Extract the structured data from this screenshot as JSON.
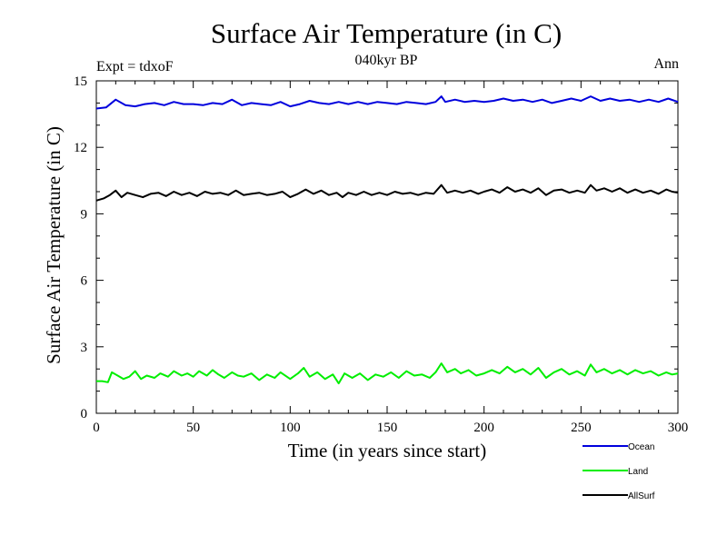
{
  "chart_data": {
    "type": "line",
    "title": "Surface Air Temperature (in C)",
    "subtitle": "040kyr BP",
    "left_note": "Expt = tdxoF",
    "right_note": "Ann",
    "xlabel": "Time (in years since start)",
    "ylabel": "Surface Air Temperature (in C)",
    "xlim": [
      0,
      300
    ],
    "ylim": [
      0,
      15
    ],
    "xticks": [
      0,
      50,
      100,
      150,
      200,
      250,
      300
    ],
    "yticks": [
      0,
      3,
      6,
      9,
      12,
      15
    ],
    "legend_position": "below-right",
    "grid": false,
    "series": [
      {
        "name": "Ocean",
        "color": "#0000dd",
        "points": [
          [
            0,
            13.75
          ],
          [
            5,
            13.8
          ],
          [
            10,
            14.15
          ],
          [
            15,
            13.9
          ],
          [
            20,
            13.85
          ],
          [
            25,
            13.95
          ],
          [
            30,
            14.0
          ],
          [
            35,
            13.9
          ],
          [
            40,
            14.05
          ],
          [
            45,
            13.95
          ],
          [
            50,
            13.95
          ],
          [
            55,
            13.9
          ],
          [
            60,
            14.0
          ],
          [
            65,
            13.95
          ],
          [
            70,
            14.15
          ],
          [
            75,
            13.9
          ],
          [
            80,
            14.0
          ],
          [
            85,
            13.95
          ],
          [
            90,
            13.9
          ],
          [
            95,
            14.05
          ],
          [
            100,
            13.85
          ],
          [
            105,
            13.95
          ],
          [
            110,
            14.1
          ],
          [
            115,
            14.0
          ],
          [
            120,
            13.95
          ],
          [
            125,
            14.05
          ],
          [
            130,
            13.95
          ],
          [
            135,
            14.05
          ],
          [
            140,
            13.95
          ],
          [
            145,
            14.05
          ],
          [
            150,
            14.0
          ],
          [
            155,
            13.95
          ],
          [
            160,
            14.05
          ],
          [
            165,
            14.0
          ],
          [
            170,
            13.95
          ],
          [
            175,
            14.05
          ],
          [
            178,
            14.3
          ],
          [
            180,
            14.05
          ],
          [
            185,
            14.15
          ],
          [
            190,
            14.05
          ],
          [
            195,
            14.1
          ],
          [
            200,
            14.05
          ],
          [
            205,
            14.1
          ],
          [
            210,
            14.2
          ],
          [
            215,
            14.1
          ],
          [
            220,
            14.15
          ],
          [
            225,
            14.05
          ],
          [
            230,
            14.15
          ],
          [
            235,
            14.0
          ],
          [
            240,
            14.1
          ],
          [
            245,
            14.2
          ],
          [
            250,
            14.1
          ],
          [
            255,
            14.3
          ],
          [
            260,
            14.1
          ],
          [
            265,
            14.2
          ],
          [
            270,
            14.1
          ],
          [
            275,
            14.15
          ],
          [
            280,
            14.05
          ],
          [
            285,
            14.15
          ],
          [
            290,
            14.05
          ],
          [
            295,
            14.2
          ],
          [
            300,
            14.05
          ]
        ]
      },
      {
        "name": "Land",
        "color": "#00ee00",
        "points": [
          [
            0,
            1.45
          ],
          [
            3,
            1.45
          ],
          [
            6,
            1.4
          ],
          [
            8,
            1.85
          ],
          [
            11,
            1.7
          ],
          [
            14,
            1.55
          ],
          [
            17,
            1.65
          ],
          [
            20,
            1.9
          ],
          [
            23,
            1.55
          ],
          [
            26,
            1.7
          ],
          [
            30,
            1.6
          ],
          [
            33,
            1.8
          ],
          [
            37,
            1.65
          ],
          [
            40,
            1.9
          ],
          [
            44,
            1.7
          ],
          [
            47,
            1.8
          ],
          [
            50,
            1.65
          ],
          [
            53,
            1.9
          ],
          [
            57,
            1.7
          ],
          [
            60,
            1.95
          ],
          [
            63,
            1.75
          ],
          [
            66,
            1.6
          ],
          [
            70,
            1.85
          ],
          [
            73,
            1.7
          ],
          [
            76,
            1.65
          ],
          [
            80,
            1.8
          ],
          [
            84,
            1.5
          ],
          [
            88,
            1.75
          ],
          [
            92,
            1.6
          ],
          [
            95,
            1.85
          ],
          [
            100,
            1.55
          ],
          [
            104,
            1.8
          ],
          [
            107,
            2.05
          ],
          [
            110,
            1.65
          ],
          [
            114,
            1.85
          ],
          [
            118,
            1.55
          ],
          [
            122,
            1.75
          ],
          [
            125,
            1.35
          ],
          [
            128,
            1.8
          ],
          [
            132,
            1.6
          ],
          [
            136,
            1.8
          ],
          [
            140,
            1.5
          ],
          [
            144,
            1.75
          ],
          [
            148,
            1.65
          ],
          [
            152,
            1.85
          ],
          [
            156,
            1.6
          ],
          [
            160,
            1.9
          ],
          [
            164,
            1.7
          ],
          [
            168,
            1.75
          ],
          [
            172,
            1.6
          ],
          [
            175,
            1.85
          ],
          [
            178,
            2.25
          ],
          [
            181,
            1.85
          ],
          [
            185,
            2.0
          ],
          [
            188,
            1.8
          ],
          [
            192,
            1.95
          ],
          [
            196,
            1.7
          ],
          [
            200,
            1.8
          ],
          [
            204,
            1.95
          ],
          [
            208,
            1.8
          ],
          [
            212,
            2.1
          ],
          [
            216,
            1.85
          ],
          [
            220,
            2.0
          ],
          [
            224,
            1.75
          ],
          [
            228,
            2.05
          ],
          [
            232,
            1.6
          ],
          [
            236,
            1.85
          ],
          [
            240,
            2.0
          ],
          [
            244,
            1.75
          ],
          [
            248,
            1.9
          ],
          [
            252,
            1.7
          ],
          [
            255,
            2.2
          ],
          [
            258,
            1.85
          ],
          [
            262,
            2.0
          ],
          [
            266,
            1.8
          ],
          [
            270,
            1.95
          ],
          [
            274,
            1.75
          ],
          [
            278,
            1.95
          ],
          [
            282,
            1.8
          ],
          [
            286,
            1.9
          ],
          [
            290,
            1.7
          ],
          [
            294,
            1.85
          ],
          [
            297,
            1.75
          ],
          [
            300,
            1.8
          ]
        ]
      },
      {
        "name": "AllSurf",
        "color": "#000000",
        "points": [
          [
            0,
            9.6
          ],
          [
            4,
            9.7
          ],
          [
            7,
            9.85
          ],
          [
            10,
            10.05
          ],
          [
            13,
            9.75
          ],
          [
            16,
            9.95
          ],
          [
            20,
            9.85
          ],
          [
            24,
            9.75
          ],
          [
            28,
            9.9
          ],
          [
            32,
            9.95
          ],
          [
            36,
            9.8
          ],
          [
            40,
            10.0
          ],
          [
            44,
            9.85
          ],
          [
            48,
            9.95
          ],
          [
            52,
            9.8
          ],
          [
            56,
            10.0
          ],
          [
            60,
            9.9
          ],
          [
            64,
            9.95
          ],
          [
            68,
            9.85
          ],
          [
            72,
            10.05
          ],
          [
            76,
            9.85
          ],
          [
            80,
            9.9
          ],
          [
            84,
            9.95
          ],
          [
            88,
            9.85
          ],
          [
            92,
            9.9
          ],
          [
            96,
            10.0
          ],
          [
            100,
            9.75
          ],
          [
            104,
            9.9
          ],
          [
            108,
            10.1
          ],
          [
            112,
            9.9
          ],
          [
            116,
            10.05
          ],
          [
            120,
            9.85
          ],
          [
            124,
            9.95
          ],
          [
            127,
            9.75
          ],
          [
            130,
            9.95
          ],
          [
            134,
            9.85
          ],
          [
            138,
            10.0
          ],
          [
            142,
            9.85
          ],
          [
            146,
            9.95
          ],
          [
            150,
            9.85
          ],
          [
            154,
            10.0
          ],
          [
            158,
            9.9
          ],
          [
            162,
            9.95
          ],
          [
            166,
            9.85
          ],
          [
            170,
            9.95
          ],
          [
            174,
            9.9
          ],
          [
            178,
            10.3
          ],
          [
            181,
            9.95
          ],
          [
            185,
            10.05
          ],
          [
            189,
            9.95
          ],
          [
            193,
            10.05
          ],
          [
            197,
            9.9
          ],
          [
            200,
            10.0
          ],
          [
            204,
            10.1
          ],
          [
            208,
            9.95
          ],
          [
            212,
            10.2
          ],
          [
            216,
            10.0
          ],
          [
            220,
            10.1
          ],
          [
            224,
            9.95
          ],
          [
            228,
            10.15
          ],
          [
            232,
            9.85
          ],
          [
            236,
            10.05
          ],
          [
            240,
            10.1
          ],
          [
            244,
            9.95
          ],
          [
            248,
            10.05
          ],
          [
            252,
            9.95
          ],
          [
            255,
            10.3
          ],
          [
            258,
            10.05
          ],
          [
            262,
            10.15
          ],
          [
            266,
            10.0
          ],
          [
            270,
            10.15
          ],
          [
            274,
            9.95
          ],
          [
            278,
            10.1
          ],
          [
            282,
            9.95
          ],
          [
            286,
            10.05
          ],
          [
            290,
            9.9
          ],
          [
            294,
            10.1
          ],
          [
            297,
            10.0
          ],
          [
            300,
            9.95
          ]
        ]
      }
    ]
  }
}
